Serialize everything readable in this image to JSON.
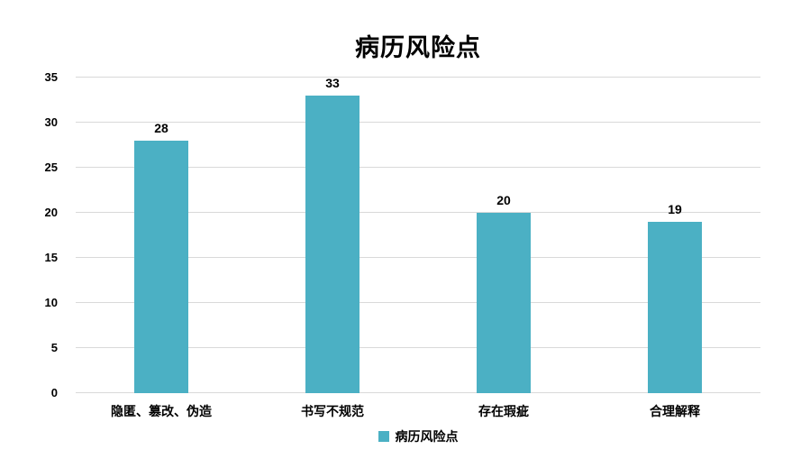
{
  "chart_data": {
    "type": "bar",
    "title": "病历风险点",
    "categories": [
      "隐匿、篡改、伪造",
      "书写不规范",
      "存在瑕疵",
      "合理解释"
    ],
    "values": [
      28,
      33,
      20,
      19
    ],
    "xlabel": "",
    "ylabel": "",
    "ylim": [
      0,
      35
    ],
    "yticks": [
      0,
      5,
      10,
      15,
      20,
      25,
      30,
      35
    ],
    "grid": true,
    "legend": {
      "label": "病历风险点",
      "position": "bottom",
      "swatch_color": "#4BB0C4"
    },
    "bar_color": "#4BB0C4",
    "gridline_color": "#D9D9D9",
    "label_color": "#000000",
    "background_color": "#FFFFFF"
  }
}
